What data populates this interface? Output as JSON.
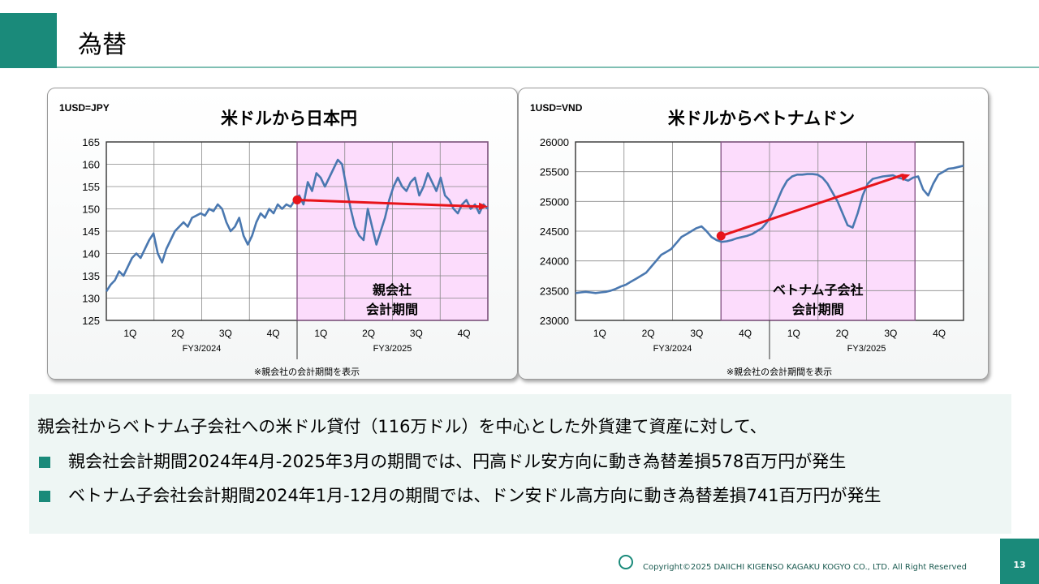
{
  "page": {
    "title": "為替",
    "page_number": "13",
    "copyright": "Copyright©2025 DAIICHI KIGENSO KAGAKU KOGYO CO., LTD. All Right Reserved"
  },
  "colors": {
    "accent": "#1a8a7a",
    "line": "#4a78b0",
    "shade": "#fcdcfc",
    "arrow": "#e8141a"
  },
  "chart_data": [
    {
      "type": "line",
      "unit_label": "1USD=JPY",
      "title": "米ドルから日本円",
      "ylim": [
        125,
        165
      ],
      "yticks": [
        125,
        130,
        135,
        140,
        145,
        150,
        155,
        160,
        165
      ],
      "quarters": [
        "1Q",
        "2Q",
        "3Q",
        "4Q",
        "1Q",
        "2Q",
        "3Q",
        "4Q"
      ],
      "fiscal_years": [
        "FY3/2024",
        "FY3/2025"
      ],
      "shaded_label": [
        "親会社",
        "会計期間"
      ],
      "note": "※親会社の会計期間を表示",
      "series": [
        {
          "values": [
            131.5,
            133,
            134,
            136,
            135,
            137,
            139,
            140,
            139,
            141,
            143,
            144.5,
            140,
            138,
            141,
            143,
            145,
            146,
            147,
            146,
            148,
            148.5,
            149,
            148.5,
            150,
            149.5,
            151,
            150,
            147,
            145,
            146,
            148,
            144,
            142,
            144,
            147,
            149,
            148,
            150,
            149,
            151,
            150,
            151,
            150.5,
            152,
            153,
            151,
            156,
            154,
            158,
            157,
            155,
            157,
            159,
            161,
            160,
            155,
            150,
            146,
            144,
            143,
            150,
            146,
            142,
            145,
            148,
            152,
            155,
            157,
            155,
            154,
            156,
            157,
            153,
            155,
            158,
            156,
            154,
            157,
            153,
            152,
            150,
            149,
            151,
            152,
            150,
            151,
            149,
            151,
            150
          ]
        }
      ],
      "arrow": {
        "from": 152,
        "to": 150.5
      }
    },
    {
      "type": "line",
      "unit_label": "1USD=VND",
      "title": "米ドルからベトナムドン",
      "ylim": [
        23000,
        26000
      ],
      "yticks": [
        23000,
        23500,
        24000,
        24500,
        25000,
        25500,
        26000
      ],
      "quarters": [
        "1Q",
        "2Q",
        "3Q",
        "4Q",
        "1Q",
        "2Q",
        "3Q",
        "4Q"
      ],
      "fiscal_years": [
        "FY3/2024",
        "FY3/2025"
      ],
      "shaded_label": [
        "ベトナム子会社",
        "会計期間"
      ],
      "note": "※親会社の会計期間を表示",
      "series": [
        {
          "values": [
            23460,
            23470,
            23480,
            23470,
            23460,
            23470,
            23480,
            23500,
            23530,
            23570,
            23600,
            23650,
            23700,
            23750,
            23800,
            23900,
            24000,
            24100,
            24150,
            24200,
            24300,
            24400,
            24450,
            24500,
            24550,
            24580,
            24500,
            24400,
            24350,
            24320,
            24330,
            24350,
            24380,
            24400,
            24420,
            24450,
            24500,
            24550,
            24650,
            24800,
            25000,
            25200,
            25350,
            25420,
            25450,
            25450,
            25460,
            25460,
            25450,
            25400,
            25300,
            25150,
            25000,
            24800,
            24600,
            24560,
            24800,
            25100,
            25300,
            25380,
            25400,
            25420,
            25430,
            25440,
            25400,
            25380,
            25350,
            25400,
            25420,
            25200,
            25100,
            25300,
            25450,
            25500,
            25550,
            25560,
            25580,
            25600
          ]
        }
      ],
      "arrow": {
        "from": 24420,
        "to": 25450
      }
    }
  ],
  "text": {
    "intro": "親会社からベトナム子会社への米ドル貸付（116万ドル）を中心とした外貨建て資産に対して、",
    "bullet1": "親会社会計期間2024年4月-2025年3月の期間では、円高ドル安方向に動き為替差損578百万円が発生",
    "bullet2": "ベトナム子会社会計期間2024年1月-12月の期間では、ドン安ドル高方向に動き為替差損741百万円が発生"
  }
}
